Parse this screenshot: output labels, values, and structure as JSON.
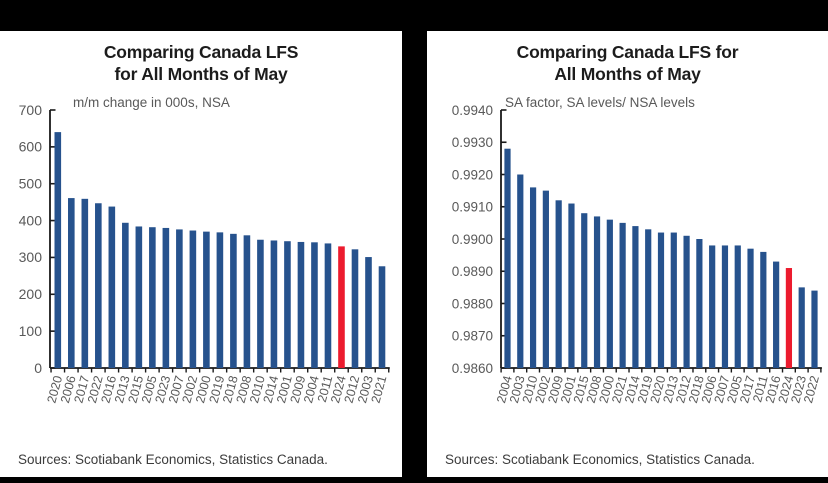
{
  "chart_data": [
    {
      "type": "bar",
      "panel": "left",
      "title": "Comparing Canada LFS for All Months of May",
      "title_lines": [
        "Comparing Canada LFS",
        "for All Months of May"
      ],
      "subtitle": "m/m change in 000s, NSA",
      "source": "Sources: Scotiabank Economics, Statistics Canada.",
      "categories": [
        "2020",
        "2006",
        "2017",
        "2022",
        "2016",
        "2013",
        "2015",
        "2005",
        "2023",
        "2007",
        "2002",
        "2000",
        "2019",
        "2018",
        "2008",
        "2010",
        "2014",
        "2001",
        "2009",
        "2004",
        "2011",
        "2024",
        "2012",
        "2003",
        "2021"
      ],
      "values": [
        640,
        461,
        459,
        447,
        438,
        394,
        384,
        382,
        380,
        376,
        373,
        370,
        368,
        364,
        360,
        348,
        346,
        344,
        342,
        341,
        338,
        330,
        322,
        301,
        276
      ],
      "highlight_category": "2024",
      "ylim": [
        0,
        700
      ],
      "ytick_labels": [
        "700",
        "600",
        "500",
        "400",
        "300",
        "200",
        "100",
        "0"
      ],
      "ytick_values": [
        700,
        600,
        500,
        400,
        300,
        200,
        100,
        0
      ],
      "bar_color": "#26528D",
      "highlight_color": "#EC1B2E",
      "label_color": "#595959",
      "axis_color": "#1a1a1a",
      "legend": "none",
      "grid": "off"
    },
    {
      "type": "bar",
      "panel": "right",
      "title": "Comparing Canada LFS for All Months of May",
      "title_lines": [
        "Comparing Canada LFS for",
        "All Months of May"
      ],
      "subtitle": "SA factor, SA levels/ NSA levels",
      "source": "Sources: Scotiabank Economics, Statistics Canada.",
      "categories": [
        "2004",
        "2003",
        "2010",
        "2002",
        "2009",
        "2001",
        "2015",
        "2008",
        "2000",
        "2021",
        "2014",
        "2019",
        "2020",
        "2013",
        "2012",
        "2018",
        "2006",
        "2007",
        "2005",
        "2017",
        "2011",
        "2016",
        "2024",
        "2023",
        "2022"
      ],
      "values": [
        0.9928,
        0.992,
        0.9916,
        0.9915,
        0.9912,
        0.9911,
        0.9908,
        0.9907,
        0.9906,
        0.9905,
        0.9904,
        0.9903,
        0.9902,
        0.9902,
        0.9901,
        0.99,
        0.9898,
        0.9898,
        0.9898,
        0.9897,
        0.9896,
        0.9893,
        0.9891,
        0.9885,
        0.9884
      ],
      "highlight_category": "2024",
      "ylim": [
        0.986,
        0.994
      ],
      "ytick_labels": [
        "0.9940",
        "0.9930",
        "0.9920",
        "0.9910",
        "0.9900",
        "0.9890",
        "0.9880",
        "0.9870",
        "0.9860"
      ],
      "ytick_values": [
        0.994,
        0.993,
        0.992,
        0.991,
        0.99,
        0.989,
        0.988,
        0.987,
        0.986
      ],
      "bar_color": "#26528D",
      "highlight_color": "#EC1B2E",
      "label_color": "#595959",
      "axis_color": "#1a1a1a",
      "legend": "none",
      "grid": "off"
    }
  ]
}
